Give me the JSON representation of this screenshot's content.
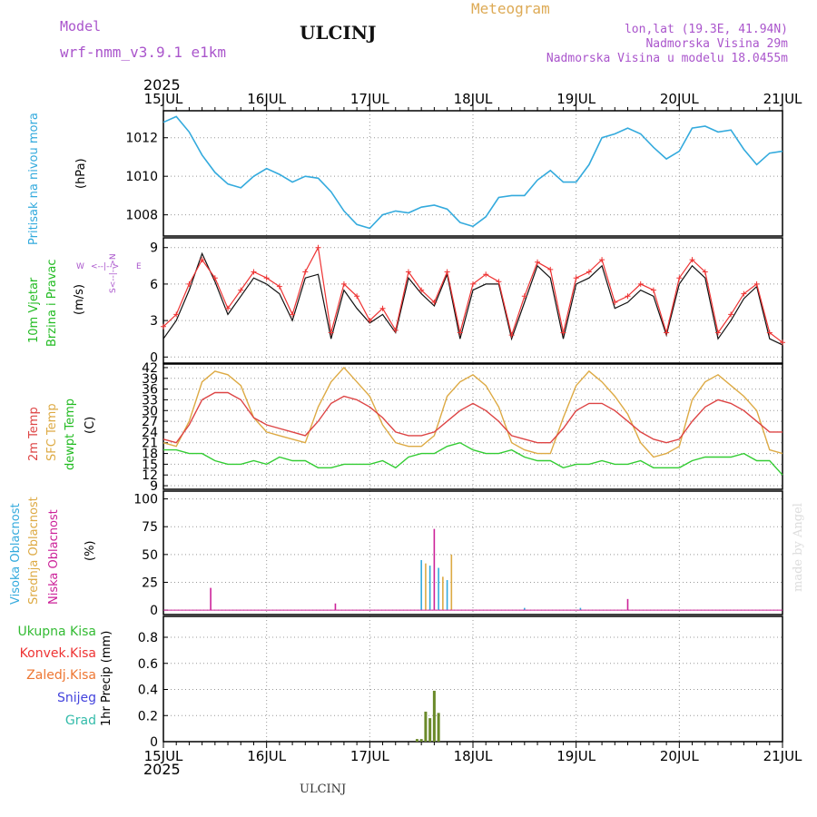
{
  "header": {
    "model_label": "Model",
    "model_name": "wrf-nmm_v3.9.1 e1km",
    "station": "ULCINJ",
    "meteogram": "Meteogram",
    "lonlat": "lon,lat (19.3E, 41.94N)",
    "altitude": "Nadmorska Visina 29m",
    "model_altitude": "Nadmorska Visina u modelu 18.0455m"
  },
  "footer": {
    "station": "ULCINJ",
    "credit": "made by Angel"
  },
  "colors": {
    "pressure": "#33aadd",
    "t2m": "#dd4444",
    "sfc": "#ddaa44",
    "dew": "#33cc33",
    "cloud_high": "#33aadd",
    "cloud_mid": "#ddaa44",
    "cloud_low": "#cc2299",
    "rain": "#44bb33",
    "model_text": "#aa55cc",
    "meteogram_text": "#ddaa55"
  },
  "chart_data": [
    {
      "type": "line",
      "panel": "pressure",
      "ylabel": [
        "Pritisak na nivou mora",
        "(hPa)"
      ],
      "yticks": [
        1008,
        1010,
        1012
      ],
      "ylim": [
        1006.9,
        1013.4
      ],
      "x_start": "2025-07-15 00:00",
      "x_unit": "hours",
      "x": [
        0,
        3,
        6,
        9,
        12,
        15,
        18,
        21,
        24,
        27,
        30,
        33,
        36,
        39,
        42,
        45,
        48,
        51,
        54,
        57,
        60,
        63,
        66,
        69,
        72,
        75,
        78,
        81,
        84,
        87,
        90,
        93,
        96,
        99,
        102,
        105,
        108,
        111,
        114,
        117,
        120,
        123,
        126,
        129,
        132,
        135,
        138,
        141,
        144
      ],
      "series": [
        {
          "name": "Pritisak na nivou mora",
          "values": [
            1012.8,
            1013.1,
            1012.3,
            1011.1,
            1010.2,
            1009.6,
            1009.4,
            1010.0,
            1010.4,
            1010.1,
            1009.7,
            1010.0,
            1009.9,
            1009.2,
            1008.2,
            1007.5,
            1007.3,
            1008.0,
            1008.2,
            1008.1,
            1008.4,
            1008.5,
            1008.3,
            1007.6,
            1007.4,
            1007.9,
            1008.9,
            1009.0,
            1009.0,
            1009.8,
            1010.3,
            1009.7,
            1009.7,
            1010.6,
            1012.0,
            1012.2,
            1012.5,
            1012.2,
            1011.5,
            1010.9,
            1011.3,
            1012.5,
            1012.6,
            1012.3,
            1012.4,
            1011.4,
            1010.6,
            1011.2,
            1011.3
          ]
        }
      ]
    },
    {
      "type": "line",
      "panel": "wind",
      "ylabel": [
        "10m Vjetar",
        "Brzina i Pravac",
        "(m/s)"
      ],
      "compass": [
        "W",
        "<--|-->",
        "E",
        "S<--|-->N"
      ],
      "yticks": [
        0,
        3,
        6,
        9
      ],
      "ylim": [
        -0.5,
        9.8
      ],
      "x": [
        0,
        3,
        6,
        9,
        12,
        15,
        18,
        21,
        24,
        27,
        30,
        33,
        36,
        39,
        42,
        45,
        48,
        51,
        54,
        57,
        60,
        63,
        66,
        69,
        72,
        75,
        78,
        81,
        84,
        87,
        90,
        93,
        96,
        99,
        102,
        105,
        108,
        111,
        114,
        117,
        120,
        123,
        126,
        129,
        132,
        135,
        138,
        141,
        144
      ],
      "series": [
        {
          "name": "Brzina",
          "values": [
            1.5,
            3.0,
            5.5,
            8.5,
            6.2,
            3.5,
            5.0,
            6.5,
            6.0,
            5.2,
            3.0,
            6.5,
            6.8,
            1.5,
            5.5,
            4.0,
            2.8,
            3.5,
            2.0,
            6.5,
            5.2,
            4.2,
            6.8,
            1.5,
            5.5,
            6.0,
            6.0,
            1.5,
            4.5,
            7.5,
            6.5,
            1.5,
            6.0,
            6.5,
            7.5,
            4.0,
            4.5,
            5.5,
            5.0,
            1.8,
            6.0,
            7.5,
            6.5,
            1.5,
            3.0,
            4.8,
            5.8,
            1.5,
            1.0
          ]
        },
        {
          "name": "Udari",
          "values": [
            2.5,
            3.5,
            6.0,
            8.0,
            6.5,
            4.0,
            5.5,
            7.0,
            6.5,
            5.8,
            3.5,
            7.0,
            9.0,
            2.0,
            6.0,
            5.0,
            3.0,
            4.0,
            2.2,
            7.0,
            5.5,
            4.5,
            7.0,
            2.0,
            6.0,
            6.8,
            6.2,
            1.8,
            5.0,
            7.8,
            7.2,
            2.0,
            6.5,
            7.0,
            8.0,
            4.5,
            5.0,
            6.0,
            5.5,
            2.0,
            6.5,
            8.0,
            7.0,
            2.0,
            3.5,
            5.2,
            6.0,
            2.0,
            1.2
          ]
        }
      ]
    },
    {
      "type": "line",
      "panel": "temperature",
      "ylabel": [
        "2m Temp",
        "SFC Temp",
        "dewpt Temp",
        "(C)"
      ],
      "yticks": [
        9,
        12,
        15,
        18,
        21,
        24,
        27,
        30,
        33,
        36,
        39,
        42
      ],
      "ylim": [
        8,
        43
      ],
      "x": [
        0,
        3,
        6,
        9,
        12,
        15,
        18,
        21,
        24,
        27,
        30,
        33,
        36,
        39,
        42,
        45,
        48,
        51,
        54,
        57,
        60,
        63,
        66,
        69,
        72,
        75,
        78,
        81,
        84,
        87,
        90,
        93,
        96,
        99,
        102,
        105,
        108,
        111,
        114,
        117,
        120,
        123,
        126,
        129,
        132,
        135,
        138,
        141,
        144
      ],
      "series": [
        {
          "name": "2m Temp",
          "values": [
            22,
            21,
            26,
            33,
            35,
            35,
            33,
            28,
            26,
            25,
            24,
            23,
            27,
            32,
            34,
            33,
            31,
            28,
            24,
            23,
            23,
            24,
            27,
            30,
            32,
            30,
            27,
            23,
            22,
            21,
            21,
            25,
            30,
            32,
            32,
            30,
            27,
            24,
            22,
            21,
            22,
            27,
            31,
            33,
            32,
            30,
            27,
            24,
            24
          ]
        },
        {
          "name": "SFC Temp",
          "values": [
            21,
            20,
            27,
            38,
            41,
            40,
            37,
            28,
            24,
            23,
            22,
            21,
            31,
            38,
            42,
            38,
            34,
            26,
            21,
            20,
            20,
            23,
            34,
            38,
            40,
            37,
            31,
            21,
            19,
            18,
            18,
            28,
            37,
            41,
            38,
            34,
            29,
            21,
            17,
            18,
            20,
            33,
            38,
            40,
            37,
            34,
            30,
            19,
            18
          ]
        },
        {
          "name": "dewpt Temp",
          "values": [
            19,
            19,
            18,
            18,
            16,
            15,
            15,
            16,
            15,
            17,
            16,
            16,
            14,
            14,
            15,
            15,
            15,
            16,
            14,
            17,
            18,
            18,
            20,
            21,
            19,
            18,
            18,
            19,
            17,
            16,
            16,
            14,
            15,
            15,
            16,
            15,
            15,
            16,
            14,
            14,
            14,
            16,
            17,
            17,
            17,
            18,
            16,
            16,
            12
          ]
        }
      ]
    },
    {
      "type": "bar",
      "panel": "clouds",
      "ylabel": [
        "Visoka Oblacnost",
        "Srednja Oblacnost",
        "Niska Oblacnost",
        "(%)"
      ],
      "yticks": [
        0,
        25,
        50,
        75,
        100
      ],
      "ylim": [
        -4,
        107
      ],
      "series": [
        {
          "name": "Visoka Oblacnost",
          "x": [
            60,
            62,
            64,
            66,
            84,
            97
          ],
          "values": [
            45,
            40,
            38,
            27,
            2,
            2
          ]
        },
        {
          "name": "Srednja Oblacnost",
          "x": [
            61,
            65,
            67
          ],
          "values": [
            42,
            30,
            50
          ]
        },
        {
          "name": "Niska Oblacnost",
          "x": [
            11,
            40,
            63,
            108
          ],
          "values": [
            20,
            6,
            73,
            10
          ]
        }
      ]
    },
    {
      "type": "bar",
      "panel": "precip",
      "ylabel": [
        "1hr Precip (mm)"
      ],
      "legend": [
        "Ukupna Kisa",
        "Konvek.Kisa",
        "Zaledj.Kisa",
        "Snijeg",
        "Grad"
      ],
      "yticks": [
        0,
        0.2,
        0.4,
        0.6,
        0.8
      ],
      "ylim": [
        0,
        0.96
      ],
      "series": [
        {
          "name": "Ukupna Kisa",
          "x": [
            59,
            60,
            61,
            62,
            63,
            64
          ],
          "values": [
            0.02,
            0.02,
            0.23,
            0.18,
            0.39,
            0.22
          ]
        }
      ]
    }
  ],
  "xaxis": {
    "year": "2025",
    "labels": [
      "15JUL",
      "16JUL",
      "17JUL",
      "18JUL",
      "19JUL",
      "20JUL",
      "21JUL"
    ],
    "range_hours": [
      0,
      144
    ]
  }
}
